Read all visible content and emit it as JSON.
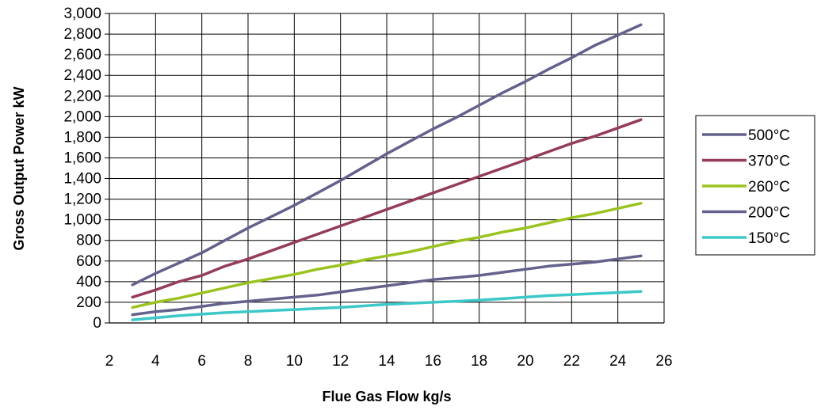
{
  "chart_data": {
    "type": "line",
    "title": "",
    "xlabel": "Flue Gas Flow kg/s",
    "ylabel": "Gross Output Power kW",
    "xlim": [
      2,
      26
    ],
    "ylim": [
      0,
      3000
    ],
    "x_ticks": [
      2,
      4,
      6,
      8,
      10,
      12,
      14,
      16,
      18,
      20,
      22,
      24,
      26
    ],
    "x_tick_labels": [
      "2",
      "4",
      "6",
      "8",
      "10",
      "12",
      "14",
      "16",
      "18",
      "20",
      "22",
      "24",
      "26"
    ],
    "y_ticks": [
      0,
      200,
      400,
      600,
      800,
      1000,
      1200,
      1400,
      1600,
      1800,
      2000,
      2200,
      2400,
      2600,
      2800,
      3000
    ],
    "y_tick_labels": [
      "0",
      "200",
      "400",
      "600",
      "800",
      "1,000",
      "1,200",
      "1,400",
      "1,600",
      "1,800",
      "2,000",
      "2,200",
      "2,400",
      "2,600",
      "2,800",
      "3,000"
    ],
    "grid": true,
    "legend_position": "right",
    "series": [
      {
        "name": "500°C",
        "color": "#64618C",
        "x": [
          3,
          4,
          5,
          6,
          7,
          8,
          9,
          10,
          11,
          12,
          13,
          14,
          15,
          16,
          17,
          18,
          19,
          20,
          21,
          22,
          23,
          24,
          25
        ],
        "values": [
          370,
          480,
          580,
          680,
          800,
          920,
          1030,
          1140,
          1260,
          1380,
          1510,
          1640,
          1760,
          1880,
          1990,
          2110,
          2230,
          2340,
          2460,
          2570,
          2690,
          2790,
          2890
        ]
      },
      {
        "name": "370°C",
        "color": "#943C5A",
        "x": [
          3,
          4,
          5,
          6,
          7,
          8,
          9,
          10,
          11,
          12,
          13,
          14,
          15,
          16,
          17,
          18,
          19,
          20,
          21,
          22,
          23,
          24,
          25
        ],
        "values": [
          250,
          320,
          400,
          460,
          550,
          620,
          700,
          780,
          860,
          940,
          1020,
          1100,
          1180,
          1260,
          1340,
          1420,
          1500,
          1580,
          1660,
          1740,
          1810,
          1890,
          1970
        ]
      },
      {
        "name": "260°C",
        "color": "#9BC31E",
        "x": [
          3,
          4,
          5,
          6,
          7,
          8,
          9,
          10,
          11,
          12,
          13,
          14,
          15,
          16,
          17,
          18,
          19,
          20,
          21,
          22,
          23,
          24,
          25
        ],
        "values": [
          150,
          200,
          240,
          290,
          340,
          390,
          430,
          470,
          520,
          560,
          610,
          650,
          690,
          740,
          790,
          830,
          880,
          920,
          970,
          1020,
          1060,
          1110,
          1160
        ]
      },
      {
        "name": "200°C",
        "color": "#64618C",
        "x": [
          3,
          4,
          5,
          6,
          7,
          8,
          9,
          10,
          11,
          12,
          13,
          14,
          15,
          16,
          17,
          18,
          19,
          20,
          21,
          22,
          23,
          24,
          25
        ],
        "values": [
          80,
          110,
          130,
          160,
          190,
          210,
          230,
          250,
          270,
          300,
          330,
          360,
          390,
          420,
          440,
          460,
          490,
          520,
          550,
          570,
          590,
          620,
          650
        ]
      },
      {
        "name": "150°C",
        "color": "#3CC8C8",
        "x": [
          3,
          4,
          5,
          6,
          7,
          8,
          9,
          10,
          11,
          12,
          13,
          14,
          15,
          16,
          17,
          18,
          19,
          20,
          21,
          22,
          23,
          24,
          25
        ],
        "values": [
          30,
          50,
          70,
          85,
          100,
          110,
          120,
          130,
          140,
          150,
          165,
          180,
          190,
          200,
          210,
          220,
          235,
          250,
          265,
          275,
          285,
          295,
          305
        ]
      }
    ]
  }
}
